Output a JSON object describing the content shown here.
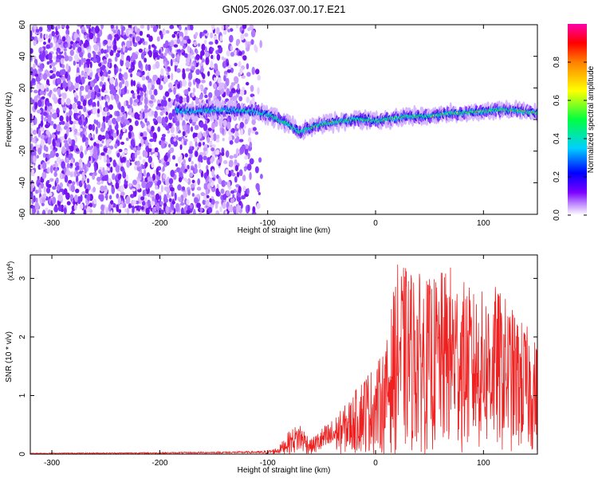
{
  "title": "GN05.2026.037.00.17.E21",
  "colors": {
    "snr_line": "#ee2020",
    "axis": "#000000"
  },
  "colorbar": {
    "label": "Normalized spectral amplitude",
    "ticks": [
      "0.0",
      "0.2",
      "0.4",
      "0.6",
      "0.8"
    ],
    "tick_values": [
      0.0,
      0.2,
      0.4,
      0.6,
      0.8
    ],
    "range": [
      0,
      1
    ]
  },
  "chart_data": [
    {
      "type": "heatmap",
      "xlabel": "Height of straight line (km)",
      "ylabel": "Frequency (Hz)",
      "xlim": [
        -320,
        150
      ],
      "ylim": [
        -60,
        60
      ],
      "x_ticks": [
        -300,
        -200,
        -100,
        0,
        100
      ],
      "x_tick_labels": [
        "-300",
        "-200",
        "-100",
        "0",
        "100"
      ],
      "y_ticks": [
        -60,
        -40,
        -20,
        0,
        20,
        40,
        60
      ],
      "y_tick_labels": [
        "-60",
        "-40",
        "-20",
        "0",
        "20",
        "40",
        "60"
      ],
      "noise_region_x": [
        -320,
        -105
      ],
      "ridge": {
        "x": [
          -185,
          -170,
          -150,
          -130,
          -110,
          -100,
          -90,
          -80,
          -70,
          -60,
          -50,
          -40,
          -30,
          -20,
          -10,
          0,
          10,
          20,
          30,
          40,
          50,
          60,
          70,
          80,
          90,
          100,
          110,
          120,
          130,
          140,
          150
        ],
        "frequency": [
          6,
          5,
          6,
          6,
          5,
          3,
          0,
          -3,
          -8,
          -5,
          -3,
          -2,
          -1,
          0,
          0,
          -1,
          0,
          1,
          2,
          2,
          2,
          3,
          4,
          4,
          5,
          5,
          6,
          6,
          6,
          5,
          4
        ]
      }
    },
    {
      "type": "line",
      "xlabel": "Height of straight line (km)",
      "ylabel": "SNR (10 * v/v)",
      "y_multiplier": "(x10",
      "y_multiplier_exp": "4",
      "y_multiplier_close": ")",
      "xlim": [
        -320,
        150
      ],
      "ylim": [
        0,
        3.4
      ],
      "x_ticks": [
        -300,
        -200,
        -100,
        0,
        100
      ],
      "x_tick_labels": [
        "-300",
        "-200",
        "-100",
        "0",
        "100"
      ],
      "y_ticks": [
        0,
        1,
        2,
        3
      ],
      "y_tick_labels": [
        "0",
        "1",
        "2",
        "3"
      ],
      "envelope": {
        "x": [
          -320,
          -200,
          -110,
          -100,
          -90,
          -80,
          -70,
          -60,
          -50,
          -40,
          -30,
          -20,
          -10,
          0,
          10,
          20,
          30,
          40,
          50,
          60,
          70,
          80,
          90,
          100,
          110,
          120,
          130,
          140,
          150
        ],
        "y": [
          0.02,
          0.03,
          0.05,
          0.06,
          0.12,
          0.4,
          0.55,
          0.25,
          0.45,
          0.6,
          0.8,
          1.05,
          1.4,
          1.5,
          1.9,
          3.25,
          3.2,
          3.1,
          3.0,
          3.1,
          3.25,
          3.0,
          2.8,
          2.8,
          2.9,
          2.7,
          2.4,
          2.2,
          1.9
        ]
      }
    }
  ]
}
